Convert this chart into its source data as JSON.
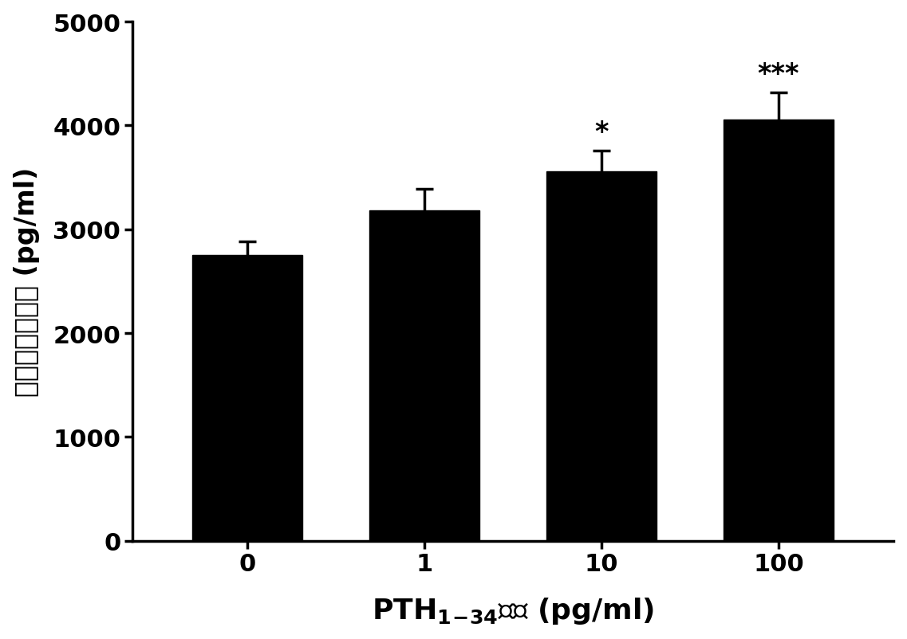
{
  "categories": [
    "0",
    "1",
    "10",
    "100"
  ],
  "values": [
    2750,
    3180,
    3560,
    4060
  ],
  "errors": [
    130,
    210,
    200,
    260
  ],
  "bar_color": "#000000",
  "bar_width": 0.62,
  "ylabel_chinese": "培养基睾酮浓度",
  "ylabel_unit": " (pg/ml)",
  "xlabel_unit": "浓度 (pg/ml)",
  "ylim": [
    0,
    5000
  ],
  "yticks": [
    0,
    1000,
    2000,
    3000,
    4000,
    5000
  ],
  "significance": [
    "",
    "",
    "*",
    "***"
  ],
  "sig_fontsize": 24,
  "tick_fontsize": 22,
  "label_fontsize": 26,
  "ylabel_fontsize": 24,
  "background_color": "#ffffff",
  "capsize": 8,
  "error_linewidth": 2.5
}
